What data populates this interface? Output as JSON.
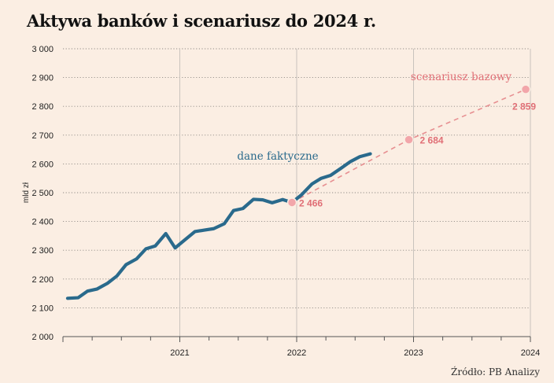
{
  "title": "Aktywa banków i scenariusz do 2024 r.",
  "source": "Źródło: PB Analizy",
  "colors": {
    "background": "#fbeee3",
    "actual": "#2a6a8c",
    "scenario": "#e06f76",
    "scenario_dot": "#f2a6aa",
    "grid": "#c9c3bd"
  },
  "chart_data": {
    "type": "line",
    "title": "Aktywa banków i scenariusz do 2024 r.",
    "ylabel": "mld zł",
    "xlabel": "",
    "ylim": [
      2000,
      3000
    ],
    "xlim": [
      2020.0,
      2024.0
    ],
    "y_ticks": [
      {
        "value": 2000,
        "label": "2 000"
      },
      {
        "value": 2100,
        "label": "2 100"
      },
      {
        "value": 2200,
        "label": "2 200"
      },
      {
        "value": 2300,
        "label": "2 300"
      },
      {
        "value": 2400,
        "label": "2 400"
      },
      {
        "value": 2500,
        "label": "2 500"
      },
      {
        "value": 2600,
        "label": "2 600"
      },
      {
        "value": 2700,
        "label": "2 700"
      },
      {
        "value": 2800,
        "label": "2 800"
      },
      {
        "value": 2900,
        "label": "2 900"
      },
      {
        "value": 3000,
        "label": "3 000"
      }
    ],
    "x_ticks": [
      {
        "value": 2021,
        "label": "2021"
      },
      {
        "value": 2022,
        "label": "2022"
      },
      {
        "value": 2023,
        "label": "2023"
      },
      {
        "value": 2024,
        "label": "2024"
      }
    ],
    "grid": true,
    "series": [
      {
        "name": "dane faktyczne",
        "style": "solid",
        "points": [
          {
            "x": 2020.04,
            "y": 2133
          },
          {
            "x": 2020.13,
            "y": 2135
          },
          {
            "x": 2020.21,
            "y": 2158
          },
          {
            "x": 2020.29,
            "y": 2165
          },
          {
            "x": 2020.38,
            "y": 2185
          },
          {
            "x": 2020.46,
            "y": 2210
          },
          {
            "x": 2020.54,
            "y": 2250
          },
          {
            "x": 2020.63,
            "y": 2270
          },
          {
            "x": 2020.71,
            "y": 2305
          },
          {
            "x": 2020.79,
            "y": 2315
          },
          {
            "x": 2020.88,
            "y": 2358
          },
          {
            "x": 2020.96,
            "y": 2308
          },
          {
            "x": 2021.04,
            "y": 2335
          },
          {
            "x": 2021.13,
            "y": 2365
          },
          {
            "x": 2021.21,
            "y": 2370
          },
          {
            "x": 2021.29,
            "y": 2375
          },
          {
            "x": 2021.38,
            "y": 2392
          },
          {
            "x": 2021.46,
            "y": 2438
          },
          {
            "x": 2021.54,
            "y": 2445
          },
          {
            "x": 2021.63,
            "y": 2477
          },
          {
            "x": 2021.71,
            "y": 2475
          },
          {
            "x": 2021.79,
            "y": 2465
          },
          {
            "x": 2021.88,
            "y": 2476
          },
          {
            "x": 2021.96,
            "y": 2466
          },
          {
            "x": 2022.04,
            "y": 2492
          },
          {
            "x": 2022.13,
            "y": 2530
          },
          {
            "x": 2022.21,
            "y": 2550
          },
          {
            "x": 2022.29,
            "y": 2560
          },
          {
            "x": 2022.38,
            "y": 2585
          },
          {
            "x": 2022.46,
            "y": 2608
          },
          {
            "x": 2022.54,
            "y": 2625
          },
          {
            "x": 2022.63,
            "y": 2635
          }
        ]
      },
      {
        "name": "scenariusz bazowy",
        "style": "dashed",
        "points": [
          {
            "x": 2021.96,
            "y": 2466,
            "label": "2 466"
          },
          {
            "x": 2022.96,
            "y": 2684,
            "label": "2 684"
          },
          {
            "x": 2023.96,
            "y": 2859,
            "label": "2 859"
          }
        ]
      }
    ]
  }
}
